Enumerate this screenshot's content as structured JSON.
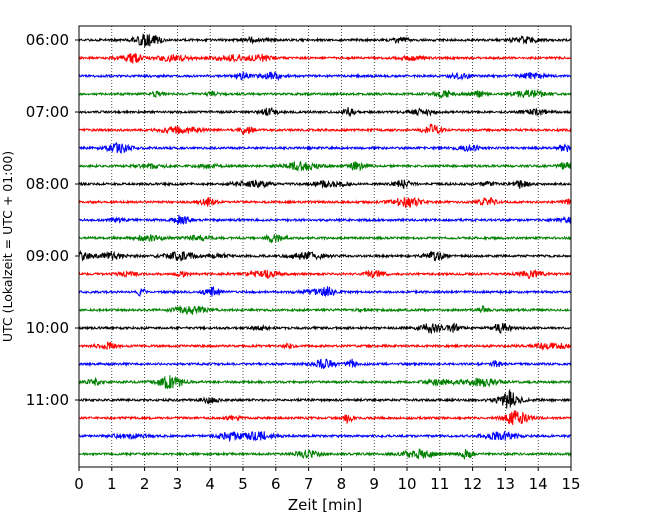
{
  "chart_data": {
    "type": "line",
    "title": "",
    "xlabel": "Zeit  [min]",
    "ylabel": "UTC (Lokalzeit = UTC + 01:00)",
    "xlim": [
      0,
      15
    ],
    "x_ticks": [
      "0",
      "1",
      "2",
      "3",
      "4",
      "5",
      "6",
      "7",
      "8",
      "9",
      "10",
      "11",
      "12",
      "13",
      "14",
      "15"
    ],
    "y_ticks": [
      "06:00",
      "07:00",
      "08:00",
      "09:00",
      "10:00",
      "11:00"
    ],
    "trace_start": "06:00",
    "trace_interval_min": 15,
    "trace_count": 24,
    "trace_colors": [
      "#000000",
      "#ff0000",
      "#0000ff",
      "#008000"
    ],
    "grid_x": true,
    "grid_style": "dotted",
    "series_note": "seismograph helicorder: one continuous ground-motion trace per 15-minute line"
  }
}
